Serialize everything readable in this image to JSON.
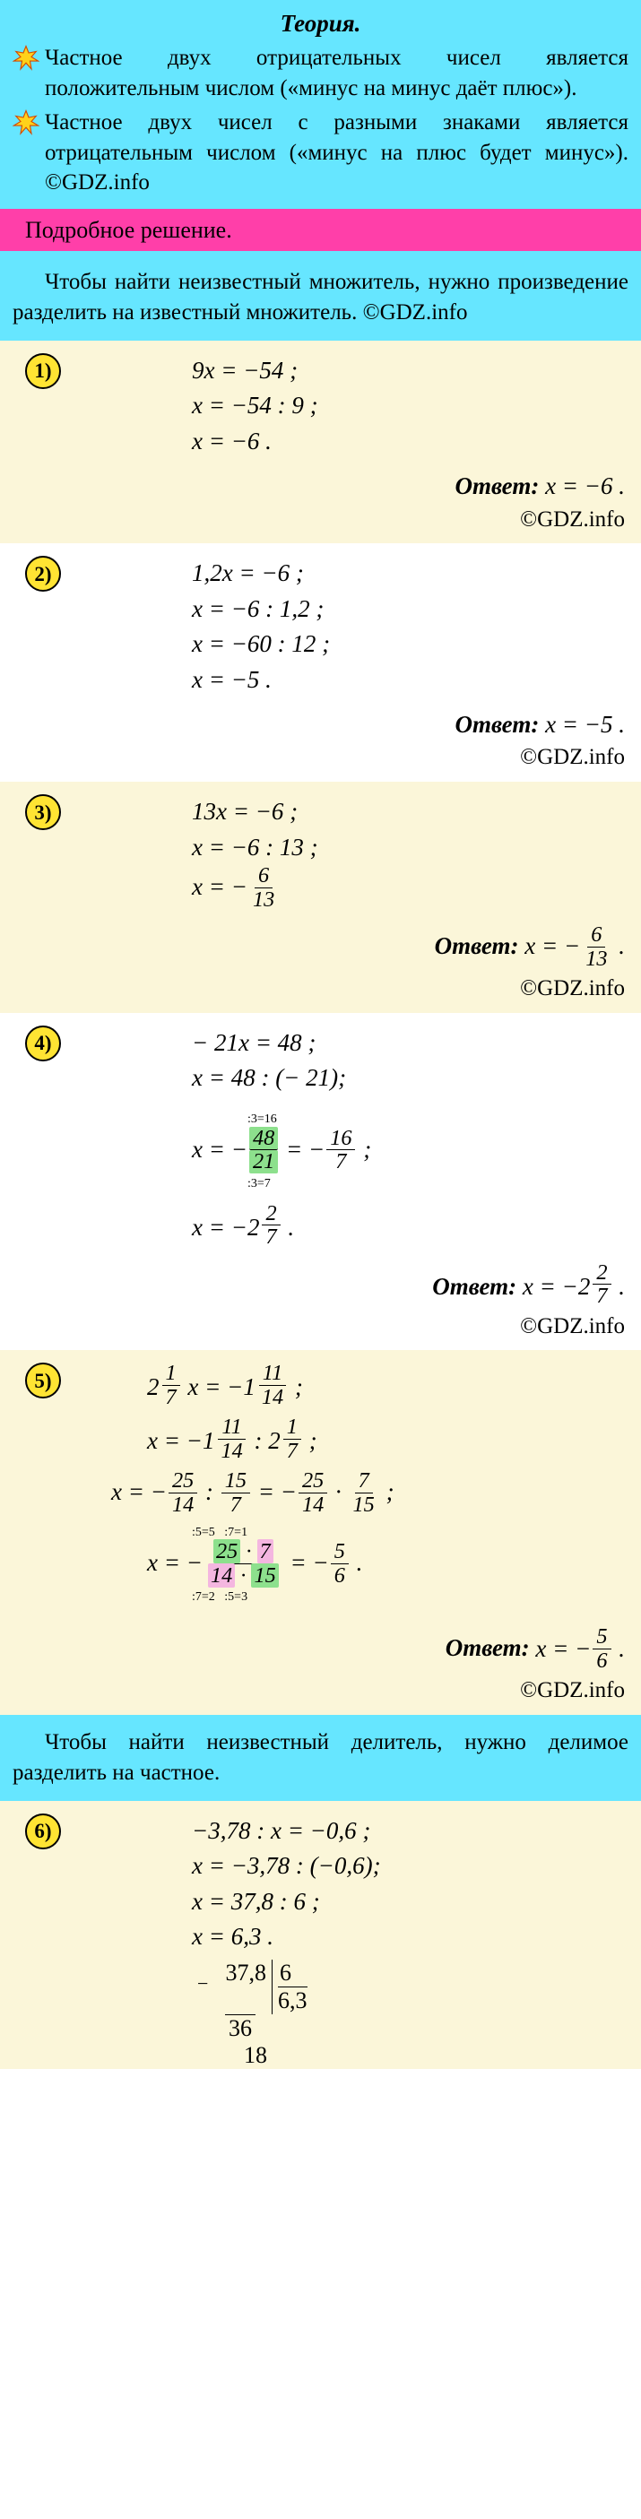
{
  "watermark_text": "GDZ.INFO",
  "theory": {
    "title": "Теория.",
    "p1": "Частное двух отрицательных чисел является положительным числом («минус на минус даёт плюс»).",
    "p2": "Частное двух чисел с разными знаками является отрицательным числом («минус на плюс будет минус»). ©GDZ.info"
  },
  "pink_bar": "Подробное решение.",
  "intro": "Чтобы найти неизвестный множитель, нужно произведение разделить на известный множитель. ©GDZ.info",
  "problems": [
    {
      "num": "1)",
      "bg": "bg-cream",
      "lines": [
        "9x = −54 ;",
        "x = −54 : 9 ;",
        "x = −6 ."
      ],
      "answer_label": "Ответ:",
      "answer_val": "x = −6 .",
      "credit": "©GDZ.info"
    },
    {
      "num": "2)",
      "bg": "bg-white",
      "lines": [
        "1,2x = −6 ;",
        "x = −6 : 1,2 ;",
        "x = −60 : 12 ;",
        "x = −5 ."
      ],
      "answer_label": "Ответ:",
      "answer_val": "x = −5 .",
      "credit": "©GDZ.info"
    },
    {
      "num": "3)",
      "bg": "bg-cream",
      "lines": [
        "13x = −6 ;",
        "x = −6 : 13 ;"
      ],
      "frac_line_prefix": "x = −",
      "frac_n": "6",
      "frac_d": "13",
      "answer_label": "Ответ:",
      "answer_prefix": "x = −",
      "answer_frac_n": "6",
      "answer_frac_d": "13",
      "credit": "©GDZ.info"
    },
    {
      "num": "4)",
      "bg": "bg-white",
      "lines": [
        "− 21x = 48 ;",
        "x = 48 : (− 21);"
      ],
      "note_top": ":3=16",
      "mid_prefix": "x = −",
      "mid_f1_n": "48",
      "mid_f1_d": "21",
      "mid_eq": " = −",
      "mid_f2_n": "16",
      "mid_f2_d": "7",
      "note_bot": ":3=7",
      "last_prefix": "x = −",
      "last_whole": "2",
      "last_n": "2",
      "last_d": "7",
      "answer_label": "Ответ:",
      "answer_prefix": "x = −",
      "answer_whole": "2",
      "answer_n": "2",
      "answer_d": "7",
      "credit": "©GDZ.info"
    },
    {
      "num": "5)",
      "bg": "bg-cream",
      "l1_w1": "2",
      "l1_n1": "1",
      "l1_d1": "7",
      "l1_mid": " x = −",
      "l1_w2": "1",
      "l1_n2": "11",
      "l1_d2": "14",
      "l2_pre": "x = −",
      "l2_w1": "1",
      "l2_n1": "11",
      "l2_d1": "14",
      "l2_mid": " : ",
      "l2_w2": "2",
      "l2_n2": "1",
      "l2_d2": "7",
      "l3_pre": "x = −",
      "l3_n1": "25",
      "l3_d1": "14",
      "l3_mid": " : ",
      "l3_n2": "15",
      "l3_d2": "7",
      "l3_eq": " = −",
      "l3_n3": "25",
      "l3_d3": "14",
      "l3_dot": " · ",
      "l3_n4": "7",
      "l3_d4": "15",
      "note_top": ":5=5   :7=1",
      "l4_pre": "x = −",
      "l4_n1": "25",
      "l4_n2": "7",
      "l4_d1": "14",
      "l4_d2": "15",
      "l4_eq": " = −",
      "l4_rn": "5",
      "l4_rd": "6",
      "note_bot": ":7=2   :5=3",
      "answer_label": "Ответ:",
      "answer_prefix": "x = −",
      "answer_n": "5",
      "answer_d": "6",
      "credit": "©GDZ.info"
    }
  ],
  "intro2": "Чтобы найти неизвестный делитель, нужно делимое разделить на частное.",
  "p6": {
    "num": "6)",
    "lines": [
      "−3,78 : x = −0,6 ;",
      "x = −3,78 : (−0,6);",
      "x = 37,8 : 6 ;",
      "x = 6,3 ."
    ],
    "ld_dividend": "37,8",
    "ld_divisor": "6",
    "ld_quotient": "6,3",
    "ld_sub1": "36",
    "ld_rem1": "18",
    "ld_minus": "−"
  },
  "colors": {
    "theory_bg": "#66e6ff",
    "pink": "#ff3fa9",
    "cream": "#fbf6d9",
    "badge": "#ffe433",
    "hl_green": "#8de08d",
    "hl_pink": "#f4b6e0",
    "star_fill": "#ffd21a",
    "star_stroke": "#d44a00"
  }
}
